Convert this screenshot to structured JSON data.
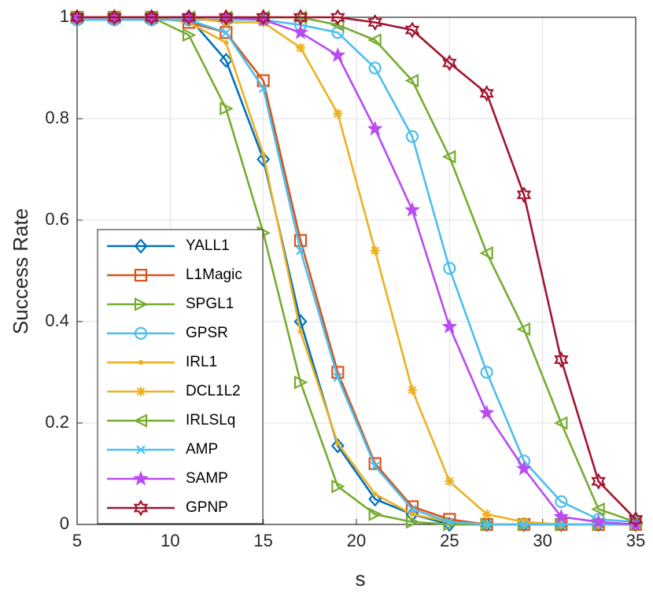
{
  "chart_data": {
    "type": "line",
    "xlabel": "s",
    "ylabel": "Success Rate",
    "x": [
      5,
      7,
      9,
      11,
      13,
      15,
      17,
      19,
      21,
      23,
      25,
      27,
      29,
      31,
      33,
      35
    ],
    "xlim": [
      5,
      35
    ],
    "xticks": [
      5,
      10,
      15,
      20,
      25,
      30,
      35
    ],
    "ylim": [
      0,
      1
    ],
    "yticks": [
      0,
      0.2,
      0.4,
      0.6,
      0.8,
      1
    ],
    "grid": true,
    "legend_location": "southwest",
    "series": [
      {
        "name": "YALL1",
        "color": "#0072BD",
        "marker": "diamond",
        "values": [
          1,
          1,
          1,
          1,
          0.915,
          0.72,
          0.4,
          0.155,
          0.05,
          0.02,
          0,
          0,
          0,
          0,
          0,
          0
        ]
      },
      {
        "name": "L1Magic",
        "color": "#D95319",
        "marker": "square",
        "values": [
          1,
          1,
          1,
          0.99,
          0.97,
          0.875,
          0.56,
          0.3,
          0.12,
          0.035,
          0.01,
          0,
          0,
          0,
          0,
          0
        ]
      },
      {
        "name": "SPGL1",
        "color": "#77AC30",
        "marker": "triangle-right",
        "values": [
          1,
          1,
          1,
          0.965,
          0.82,
          0.575,
          0.28,
          0.075,
          0.02,
          0.005,
          0,
          0,
          0,
          0,
          0,
          0
        ]
      },
      {
        "name": "GPSR",
        "color": "#4DBEEE",
        "marker": "circle",
        "values": [
          0.995,
          0.995,
          0.995,
          0.995,
          0.995,
          0.995,
          0.985,
          0.97,
          0.9,
          0.765,
          0.505,
          0.3,
          0.125,
          0.045,
          0.01,
          0.005
        ]
      },
      {
        "name": "IRL1",
        "color": "#EDB120",
        "marker": "point",
        "values": [
          1,
          1,
          1,
          0.99,
          0.95,
          0.73,
          0.38,
          0.16,
          0.06,
          0.02,
          0.005,
          0,
          0,
          0,
          0,
          0
        ]
      },
      {
        "name": "DCL1L2",
        "color": "#EDB120",
        "marker": "asterisk",
        "values": [
          1,
          1,
          1,
          1,
          0.99,
          0.99,
          0.94,
          0.81,
          0.54,
          0.265,
          0.085,
          0.02,
          0.005,
          0,
          0,
          0
        ]
      },
      {
        "name": "IRLSLq",
        "color": "#77AC30",
        "marker": "triangle-left",
        "values": [
          1,
          1,
          1,
          1,
          1,
          1,
          1,
          0.985,
          0.955,
          0.875,
          0.725,
          0.535,
          0.385,
          0.2,
          0.03,
          0.005
        ]
      },
      {
        "name": "AMP",
        "color": "#4DBEEE",
        "marker": "x",
        "values": [
          0.995,
          0.995,
          0.995,
          0.995,
          0.97,
          0.86,
          0.54,
          0.29,
          0.115,
          0.03,
          0.005,
          0,
          0,
          0,
          0,
          0
        ]
      },
      {
        "name": "SAMP",
        "color": "#B94BF0",
        "marker": "pentagram",
        "values": [
          1,
          1,
          1,
          1,
          1,
          0.995,
          0.97,
          0.925,
          0.78,
          0.62,
          0.39,
          0.22,
          0.11,
          0.015,
          0.005,
          0
        ]
      },
      {
        "name": "GPNP",
        "color": "#A2142F",
        "marker": "hexagram",
        "values": [
          1,
          1,
          1,
          1,
          1,
          1,
          1,
          1,
          0.99,
          0.975,
          0.91,
          0.85,
          0.65,
          0.325,
          0.085,
          0.01
        ]
      }
    ]
  }
}
